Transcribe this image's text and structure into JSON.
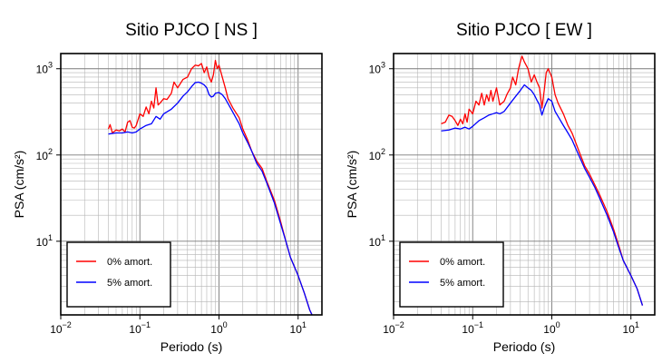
{
  "chart_data": [
    {
      "type": "line",
      "title": "Sitio PJCO [ NS ]",
      "xlabel": "Periodo (s)",
      "ylabel": "PSA (cm/s²)",
      "xscale": "log",
      "yscale": "log",
      "xlim": [
        0.01,
        20
      ],
      "ylim": [
        1.4,
        1500
      ],
      "x_ticks": [
        {
          "base": "10",
          "exp": "−2"
        },
        {
          "base": "10",
          "exp": "−1"
        },
        {
          "base": "10",
          "exp": "0"
        },
        {
          "base": "10",
          "exp": "1"
        }
      ],
      "y_ticks": [
        {
          "base": "10",
          "exp": "1"
        },
        {
          "base": "10",
          "exp": "2"
        },
        {
          "base": "10",
          "exp": "3"
        }
      ],
      "grid": true,
      "legend_position": "bottom-left",
      "series": [
        {
          "name": "0% amort.",
          "color": "#ff0000",
          "points": [
            [
              0.04,
              200
            ],
            [
              0.042,
              225
            ],
            [
              0.045,
              180
            ],
            [
              0.05,
              195
            ],
            [
              0.055,
              190
            ],
            [
              0.06,
              200
            ],
            [
              0.065,
              185
            ],
            [
              0.07,
              240
            ],
            [
              0.075,
              250
            ],
            [
              0.08,
              210
            ],
            [
              0.085,
              205
            ],
            [
              0.09,
              220
            ],
            [
              0.1,
              300
            ],
            [
              0.11,
              280
            ],
            [
              0.12,
              360
            ],
            [
              0.13,
              300
            ],
            [
              0.14,
              420
            ],
            [
              0.15,
              350
            ],
            [
              0.16,
              600
            ],
            [
              0.17,
              380
            ],
            [
              0.18,
              400
            ],
            [
              0.2,
              450
            ],
            [
              0.22,
              440
            ],
            [
              0.25,
              520
            ],
            [
              0.27,
              700
            ],
            [
              0.3,
              600
            ],
            [
              0.35,
              750
            ],
            [
              0.4,
              800
            ],
            [
              0.45,
              1000
            ],
            [
              0.5,
              1100
            ],
            [
              0.55,
              1080
            ],
            [
              0.6,
              1150
            ],
            [
              0.65,
              900
            ],
            [
              0.7,
              1050
            ],
            [
              0.75,
              800
            ],
            [
              0.8,
              700
            ],
            [
              0.85,
              850
            ],
            [
              0.9,
              1250
            ],
            [
              0.95,
              1000
            ],
            [
              1.0,
              1100
            ],
            [
              1.1,
              800
            ],
            [
              1.2,
              600
            ],
            [
              1.3,
              450
            ],
            [
              1.5,
              350
            ],
            [
              1.8,
              270
            ],
            [
              2.0,
              200
            ],
            [
              2.3,
              150
            ],
            [
              2.6,
              110
            ],
            [
              3.0,
              85
            ],
            [
              3.5,
              70
            ],
            [
              4.0,
              50
            ],
            [
              5.0,
              30
            ],
            [
              6.0,
              17
            ],
            [
              7.0,
              10
            ],
            [
              8.0,
              6.5
            ],
            [
              10.0,
              4
            ],
            [
              12.0,
              2.5
            ],
            [
              14.0,
              1.6
            ],
            [
              15.0,
              1.4
            ]
          ]
        },
        {
          "name": "5% amort.",
          "color": "#0000ff",
          "points": [
            [
              0.04,
              175
            ],
            [
              0.05,
              180
            ],
            [
              0.06,
              180
            ],
            [
              0.07,
              185
            ],
            [
              0.08,
              180
            ],
            [
              0.09,
              185
            ],
            [
              0.1,
              200
            ],
            [
              0.12,
              220
            ],
            [
              0.14,
              230
            ],
            [
              0.16,
              280
            ],
            [
              0.18,
              260
            ],
            [
              0.2,
              300
            ],
            [
              0.25,
              340
            ],
            [
              0.3,
              400
            ],
            [
              0.35,
              480
            ],
            [
              0.4,
              540
            ],
            [
              0.45,
              620
            ],
            [
              0.5,
              690
            ],
            [
              0.55,
              700
            ],
            [
              0.6,
              680
            ],
            [
              0.65,
              650
            ],
            [
              0.7,
              600
            ],
            [
              0.75,
              500
            ],
            [
              0.8,
              470
            ],
            [
              0.85,
              480
            ],
            [
              0.9,
              520
            ],
            [
              1.0,
              530
            ],
            [
              1.1,
              500
            ],
            [
              1.2,
              450
            ],
            [
              1.4,
              350
            ],
            [
              1.6,
              280
            ],
            [
              1.8,
              230
            ],
            [
              2.0,
              180
            ],
            [
              2.3,
              140
            ],
            [
              2.6,
              110
            ],
            [
              3.0,
              80
            ],
            [
              3.5,
              65
            ],
            [
              4.0,
              48
            ],
            [
              5.0,
              28
            ],
            [
              6.0,
              16
            ],
            [
              7.0,
              10
            ],
            [
              8.0,
              6.5
            ],
            [
              10.0,
              4
            ],
            [
              12.0,
              2.5
            ],
            [
              14.0,
              1.6
            ],
            [
              15.0,
              1.4
            ]
          ]
        }
      ]
    },
    {
      "type": "line",
      "title": "Sitio PJCO [ EW ]",
      "xlabel": "Periodo (s)",
      "ylabel": "PSA (cm/s²)",
      "xscale": "log",
      "yscale": "log",
      "xlim": [
        0.01,
        20
      ],
      "ylim": [
        1.4,
        1500
      ],
      "x_ticks": [
        {
          "base": "10",
          "exp": "−2"
        },
        {
          "base": "10",
          "exp": "−1"
        },
        {
          "base": "10",
          "exp": "0"
        },
        {
          "base": "10",
          "exp": "1"
        }
      ],
      "y_ticks": [
        {
          "base": "10",
          "exp": "1"
        },
        {
          "base": "10",
          "exp": "2"
        },
        {
          "base": "10",
          "exp": "3"
        }
      ],
      "grid": true,
      "legend_position": "bottom-left",
      "series": [
        {
          "name": "0% amort.",
          "color": "#ff0000",
          "points": [
            [
              0.04,
              230
            ],
            [
              0.045,
              240
            ],
            [
              0.05,
              290
            ],
            [
              0.055,
              280
            ],
            [
              0.06,
              250
            ],
            [
              0.065,
              220
            ],
            [
              0.07,
              260
            ],
            [
              0.075,
              230
            ],
            [
              0.08,
              300
            ],
            [
              0.085,
              240
            ],
            [
              0.09,
              340
            ],
            [
              0.1,
              300
            ],
            [
              0.11,
              420
            ],
            [
              0.12,
              380
            ],
            [
              0.13,
              520
            ],
            [
              0.14,
              380
            ],
            [
              0.15,
              500
            ],
            [
              0.16,
              420
            ],
            [
              0.17,
              560
            ],
            [
              0.18,
              420
            ],
            [
              0.2,
              600
            ],
            [
              0.22,
              380
            ],
            [
              0.25,
              420
            ],
            [
              0.27,
              500
            ],
            [
              0.3,
              600
            ],
            [
              0.32,
              800
            ],
            [
              0.35,
              650
            ],
            [
              0.38,
              1000
            ],
            [
              0.4,
              1200
            ],
            [
              0.42,
              1400
            ],
            [
              0.45,
              1200
            ],
            [
              0.5,
              1000
            ],
            [
              0.55,
              700
            ],
            [
              0.6,
              850
            ],
            [
              0.65,
              700
            ],
            [
              0.7,
              600
            ],
            [
              0.75,
              350
            ],
            [
              0.8,
              550
            ],
            [
              0.85,
              900
            ],
            [
              0.9,
              1000
            ],
            [
              1.0,
              800
            ],
            [
              1.1,
              500
            ],
            [
              1.2,
              400
            ],
            [
              1.4,
              300
            ],
            [
              1.6,
              220
            ],
            [
              1.8,
              180
            ],
            [
              2.0,
              140
            ],
            [
              2.3,
              100
            ],
            [
              2.6,
              75
            ],
            [
              3.0,
              60
            ],
            [
              3.5,
              45
            ],
            [
              4.0,
              35
            ],
            [
              5.0,
              22
            ],
            [
              6.0,
              14
            ],
            [
              7.0,
              9
            ],
            [
              8.0,
              6
            ],
            [
              10.0,
              4
            ],
            [
              12.0,
              2.8
            ],
            [
              14.0,
              1.8
            ]
          ]
        },
        {
          "name": "5% amort.",
          "color": "#0000ff",
          "points": [
            [
              0.04,
              190
            ],
            [
              0.05,
              195
            ],
            [
              0.06,
              205
            ],
            [
              0.07,
              200
            ],
            [
              0.08,
              210
            ],
            [
              0.09,
              200
            ],
            [
              0.1,
              215
            ],
            [
              0.12,
              250
            ],
            [
              0.14,
              270
            ],
            [
              0.16,
              290
            ],
            [
              0.18,
              300
            ],
            [
              0.2,
              310
            ],
            [
              0.22,
              300
            ],
            [
              0.25,
              320
            ],
            [
              0.3,
              400
            ],
            [
              0.35,
              480
            ],
            [
              0.4,
              560
            ],
            [
              0.45,
              650
            ],
            [
              0.5,
              600
            ],
            [
              0.55,
              560
            ],
            [
              0.6,
              500
            ],
            [
              0.65,
              430
            ],
            [
              0.7,
              380
            ],
            [
              0.75,
              290
            ],
            [
              0.8,
              350
            ],
            [
              0.85,
              400
            ],
            [
              0.9,
              450
            ],
            [
              1.0,
              420
            ],
            [
              1.1,
              320
            ],
            [
              1.2,
              280
            ],
            [
              1.4,
              220
            ],
            [
              1.6,
              180
            ],
            [
              1.8,
              150
            ],
            [
              2.0,
              120
            ],
            [
              2.3,
              90
            ],
            [
              2.6,
              70
            ],
            [
              3.0,
              55
            ],
            [
              3.5,
              42
            ],
            [
              4.0,
              32
            ],
            [
              5.0,
              20
            ],
            [
              6.0,
              13
            ],
            [
              7.0,
              8.5
            ],
            [
              8.0,
              6
            ],
            [
              10.0,
              4
            ],
            [
              12.0,
              2.8
            ],
            [
              14.0,
              1.8
            ]
          ]
        }
      ]
    }
  ]
}
